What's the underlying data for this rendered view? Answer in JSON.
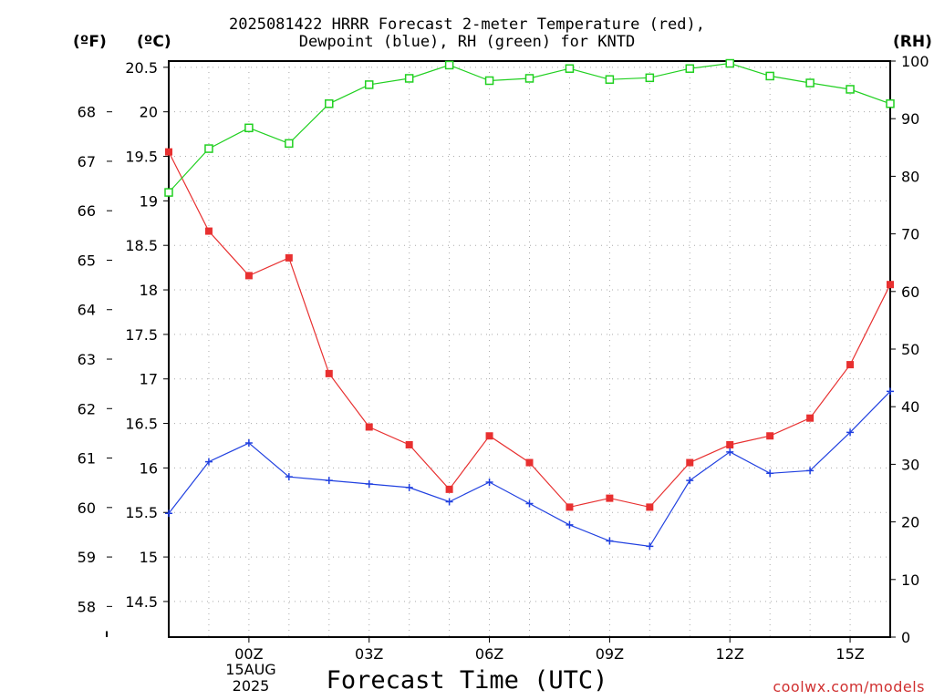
{
  "title": {
    "line1": "2025081422 HRRR Forecast 2-meter Temperature (red),",
    "line2": "Dewpoint (blue), RH (green) for KNTD"
  },
  "units": {
    "left_f": "(ºF)",
    "left_c": "(ºC)",
    "right_rh": "(RH)"
  },
  "watermark": "coolwx.com/models",
  "chart_data": {
    "type": "line",
    "title": "2025081422 HRRR Forecast 2-meter Temperature (red), Dewpoint (blue), RH (green) for KNTD",
    "xlabel": "Forecast Time (UTC)",
    "x": [
      "22Z",
      "23Z",
      "00Z",
      "01Z",
      "02Z",
      "03Z",
      "04Z",
      "05Z",
      "06Z",
      "07Z",
      "08Z",
      "09Z",
      "10Z",
      "11Z",
      "12Z",
      "13Z",
      "14Z",
      "15Z",
      "16Z"
    ],
    "x_tick_labels": [
      "00Z",
      "03Z",
      "06Z",
      "09Z",
      "12Z",
      "15Z"
    ],
    "date_label": {
      "line1": "15AUG",
      "line2": "2025"
    },
    "y_left_c": {
      "ticks": [
        "14.5",
        "15",
        "15.5",
        "16",
        "16.5",
        "17",
        "17.5",
        "18",
        "18.5",
        "19",
        "19.5",
        "20",
        "20.5"
      ],
      "range": [
        14.1,
        20.57
      ]
    },
    "y_left_f": {
      "ticks": [
        "58",
        "59",
        "60",
        "61",
        "62",
        "63",
        "64",
        "65",
        "66",
        "67",
        "68"
      ]
    },
    "y_right_rh": {
      "ticks": [
        "0",
        "10",
        "20",
        "30",
        "40",
        "50",
        "60",
        "70",
        "80",
        "90",
        "100"
      ],
      "range": [
        0,
        100
      ]
    },
    "grid": true,
    "series": [
      {
        "name": "Temperature",
        "axis": "celsius",
        "color": "#e83030",
        "marker": "filled-square",
        "values": [
          19.55,
          18.66,
          18.16,
          18.36,
          17.06,
          16.46,
          16.26,
          15.76,
          16.36,
          16.06,
          15.56,
          15.66,
          15.56,
          16.06,
          16.26,
          16.36,
          16.56,
          17.16,
          18.06
        ]
      },
      {
        "name": "Dewpoint",
        "axis": "celsius",
        "color": "#2040e0",
        "marker": "plus",
        "values": [
          15.49,
          16.07,
          16.28,
          15.9,
          15.86,
          15.82,
          15.78,
          15.62,
          15.84,
          15.6,
          15.36,
          15.18,
          15.12,
          15.86,
          16.18,
          15.94,
          15.97,
          16.4,
          16.86
        ]
      },
      {
        "name": "RH",
        "axis": "rh",
        "color": "#20d020",
        "marker": "open-square",
        "values": [
          77.2,
          84.8,
          88.4,
          85.7,
          92.6,
          95.9,
          97,
          99.3,
          96.6,
          97,
          98.7,
          96.8,
          97.1,
          98.7,
          99.6,
          97.4,
          96.2,
          95.1,
          92.6
        ]
      }
    ]
  }
}
